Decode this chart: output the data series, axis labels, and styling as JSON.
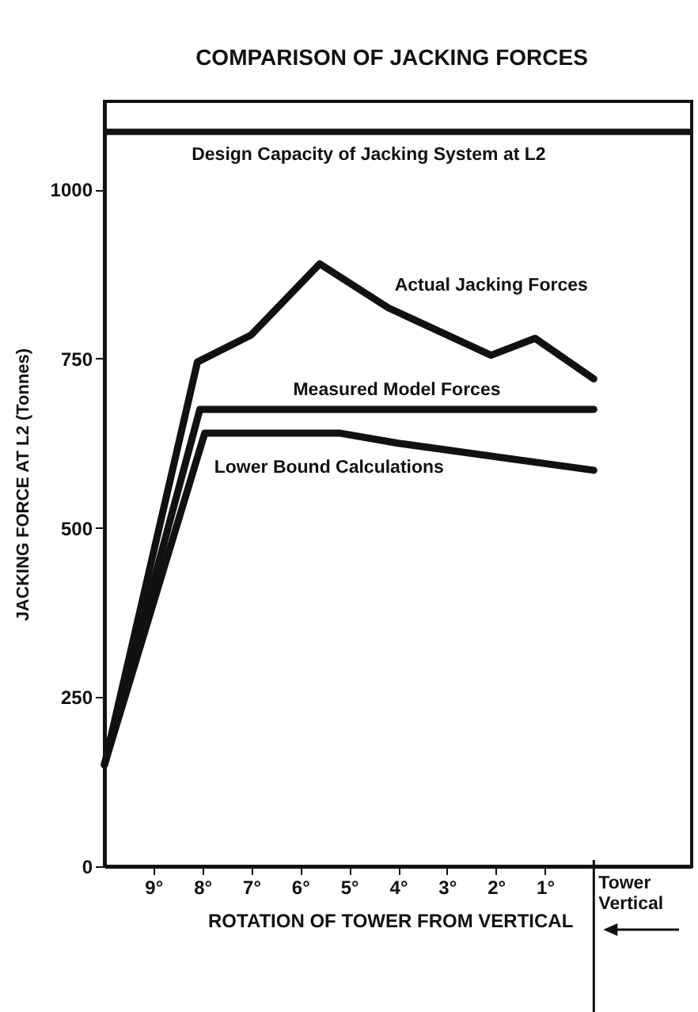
{
  "chart_data": {
    "type": "line",
    "title": "COMPARISON OF JACKING FORCES",
    "xlabel": "ROTATION OF TOWER FROM VERTICAL",
    "ylabel": "JACKING FORCE AT L2 (Tonnes)",
    "xlim": [
      10,
      -2
    ],
    "xticks": [
      {
        "value": 9,
        "label": "9°"
      },
      {
        "value": 8,
        "label": "8°"
      },
      {
        "value": 7,
        "label": "7°"
      },
      {
        "value": 6,
        "label": "6°"
      },
      {
        "value": 5,
        "label": "5°"
      },
      {
        "value": 4,
        "label": "4°"
      },
      {
        "value": 3,
        "label": "3°"
      },
      {
        "value": 2,
        "label": "2°"
      },
      {
        "value": 1,
        "label": "1°"
      }
    ],
    "ylim": [
      0,
      1130
    ],
    "yticks": [
      0,
      250,
      500,
      750,
      1000
    ],
    "grid": false,
    "series": [
      {
        "name": "Actual Jacking Forces",
        "color": "#111111",
        "x": [
          10,
          8.1,
          7,
          5.6,
          4.2,
          2.1,
          1.2,
          0
        ],
        "values": [
          150,
          745,
          785,
          890,
          825,
          755,
          780,
          720
        ]
      },
      {
        "name": "Measured Model Forces",
        "color": "#111111",
        "x": [
          10,
          8.05,
          0
        ],
        "values": [
          150,
          675,
          675
        ]
      },
      {
        "name": "Lower Bound Calculations",
        "color": "#111111",
        "x": [
          10,
          7.95,
          5.2,
          4,
          1,
          0
        ],
        "values": [
          150,
          640,
          640,
          625,
          595,
          585
        ]
      }
    ],
    "ref_lines": [
      {
        "axis": "y",
        "value": 1085,
        "label": "Design Capacity of Jacking System at L2"
      },
      {
        "axis": "x",
        "value": 0,
        "label": "Tower Vertical"
      }
    ]
  }
}
